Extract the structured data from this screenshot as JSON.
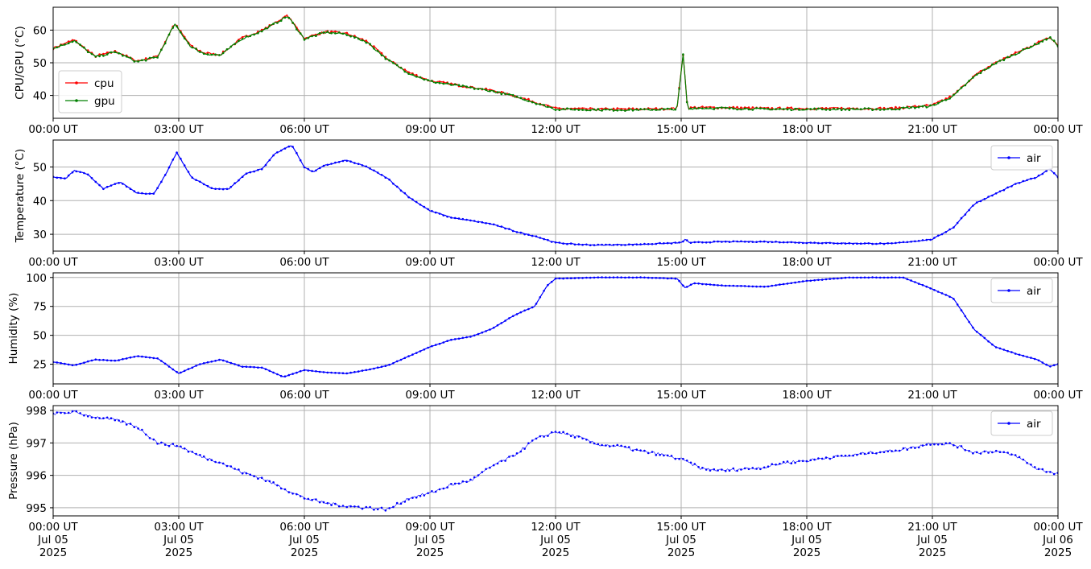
{
  "colors": {
    "cpu": "#ff0000",
    "gpu": "#008000",
    "air": "#0000ff",
    "grid": "#b0b0b0"
  },
  "x_axis": {
    "tick_labels": [
      "00:00 UT",
      "03:00 UT",
      "06:00 UT",
      "09:00 UT",
      "12:00 UT",
      "15:00 UT",
      "18:00 UT",
      "21:00 UT",
      "00:00 UT"
    ],
    "bottom_dates": [
      "Jul 05",
      "Jul 05",
      "Jul 05",
      "Jul 05",
      "Jul 05",
      "Jul 05",
      "Jul 05",
      "Jul 05",
      "Jul 06"
    ],
    "bottom_years": [
      "2025",
      "2025",
      "2025",
      "2025",
      "2025",
      "2025",
      "2025",
      "2025",
      "2025"
    ]
  },
  "chart_data": [
    {
      "type": "line",
      "ylabel": "CPU/GPU (°C)",
      "ylim": [
        33,
        67
      ],
      "yticks": [
        40,
        50,
        60
      ],
      "xlim": [
        "2025-07-05 00:00",
        "2025-07-06 00:00"
      ],
      "grid": true,
      "legend": "lower-left",
      "series": [
        {
          "name": "cpu",
          "color": "#ff0000",
          "x": [
            0,
            0.5,
            1,
            1.5,
            2,
            2.5,
            2.9,
            3.3,
            3.6,
            4,
            4.5,
            5,
            5.6,
            6,
            6.5,
            7,
            7.5,
            8,
            8.5,
            9,
            9.5,
            10,
            10.5,
            11,
            11.5,
            12,
            13,
            14,
            14.9,
            15.05,
            15.15,
            15.3,
            16,
            17,
            18,
            19,
            20,
            21,
            21.5,
            22,
            22.5,
            23,
            23.5,
            23.8,
            24
          ],
          "values": [
            54.5,
            57,
            52,
            53.5,
            50.5,
            52,
            62,
            55,
            53,
            52.5,
            57.5,
            60,
            64.5,
            57.5,
            59.5,
            59,
            56.5,
            51,
            47,
            44.5,
            43.5,
            42.5,
            41.5,
            40,
            38,
            36,
            35.8,
            35.8,
            36,
            53,
            36,
            36.3,
            36.3,
            36,
            36,
            36,
            36,
            37,
            40,
            46,
            50,
            53,
            56,
            58,
            55.5
          ]
        },
        {
          "name": "gpu",
          "color": "#008000",
          "x": [
            0,
            0.5,
            1,
            1.5,
            2,
            2.5,
            2.9,
            3.3,
            3.6,
            4,
            4.5,
            5,
            5.6,
            6,
            6.5,
            7,
            7.5,
            8,
            8.5,
            9,
            9.5,
            10,
            10.5,
            11,
            11.5,
            12,
            13,
            14,
            14.9,
            15.05,
            15.15,
            15.3,
            16,
            17,
            18,
            19,
            20,
            21,
            21.5,
            22,
            22.5,
            23,
            23.5,
            23.8,
            24
          ],
          "values": [
            54.3,
            56.8,
            51.8,
            53.3,
            50.3,
            51.8,
            61.8,
            54.8,
            52.8,
            52.3,
            57.3,
            59.8,
            64.3,
            57.3,
            59.3,
            58.8,
            56.3,
            50.8,
            46.8,
            44.3,
            43.3,
            42.3,
            41.3,
            39.8,
            37.8,
            35.8,
            35.6,
            35.6,
            35.8,
            52.8,
            35.8,
            36.1,
            36.1,
            35.8,
            35.8,
            35.8,
            35.8,
            36.8,
            39.8,
            45.8,
            49.8,
            52.8,
            55.8,
            57.8,
            55.3
          ]
        }
      ]
    },
    {
      "type": "line",
      "ylabel": "Temperature (°C)",
      "ylim": [
        25,
        58
      ],
      "yticks": [
        30,
        40,
        50
      ],
      "xlim": [
        "2025-07-05 00:00",
        "2025-07-06 00:00"
      ],
      "grid": true,
      "legend": "top-right",
      "series": [
        {
          "name": "air",
          "color": "#0000ff",
          "x": [
            0,
            0.3,
            0.5,
            0.8,
            1.2,
            1.6,
            2,
            2.4,
            2.7,
            2.95,
            3.3,
            3.8,
            4.2,
            4.6,
            5,
            5.3,
            5.7,
            6,
            6.2,
            6.5,
            7,
            7.5,
            8,
            8.5,
            9,
            9.5,
            10,
            10.5,
            11,
            11.3,
            11.5,
            12,
            12.5,
            13,
            14,
            15,
            15.1,
            15.2,
            16,
            17,
            18,
            19,
            20,
            21,
            21.5,
            22,
            22.5,
            23,
            23.5,
            23.8,
            24
          ],
          "values": [
            47,
            46.5,
            49,
            48,
            43.5,
            45.5,
            42.3,
            42,
            48,
            54.3,
            47,
            43.5,
            43.5,
            48,
            49.5,
            54,
            56.5,
            50,
            48.5,
            50.5,
            52,
            50,
            46.5,
            41,
            37,
            35,
            34,
            33,
            31,
            30,
            29.5,
            27.5,
            27,
            26.8,
            27,
            27.5,
            28.5,
            27.5,
            27.8,
            27.8,
            27.5,
            27.3,
            27.2,
            28.5,
            32,
            39,
            42,
            45,
            47,
            49.5,
            47
          ]
        }
      ]
    },
    {
      "type": "line",
      "ylabel": "Humidity (%)",
      "ylim": [
        8,
        104
      ],
      "yticks": [
        25,
        50,
        75,
        100
      ],
      "xlim": [
        "2025-07-05 00:00",
        "2025-07-06 00:00"
      ],
      "grid": true,
      "legend": "top-right",
      "series": [
        {
          "name": "air",
          "color": "#0000ff",
          "x": [
            0,
            0.5,
            1,
            1.5,
            2,
            2.5,
            3,
            3.5,
            4,
            4.5,
            5,
            5.5,
            6,
            6.5,
            7,
            7.5,
            8,
            8.5,
            9,
            9.5,
            10,
            10.5,
            11,
            11.3,
            11.5,
            11.8,
            12,
            13,
            14,
            14.9,
            15.1,
            15.3,
            16,
            17,
            18,
            19,
            20,
            20.3,
            21,
            21.5,
            22,
            22.5,
            23,
            23.5,
            23.8,
            24
          ],
          "values": [
            27,
            24,
            29,
            28,
            32,
            30,
            17,
            25,
            29,
            23,
            22,
            14,
            20,
            18,
            17,
            20,
            24,
            32,
            40,
            46,
            49,
            56,
            67,
            72,
            75,
            93,
            99,
            100,
            100,
            99,
            91,
            95,
            93,
            92,
            97,
            100,
            100,
            100,
            90,
            82,
            55,
            40,
            34,
            29,
            23,
            25
          ]
        }
      ]
    },
    {
      "type": "scatter",
      "ylabel": "Pressure (hPa)",
      "ylim": [
        994.75,
        998.15
      ],
      "yticks": [
        995,
        996,
        997,
        998
      ],
      "xlim": [
        "2025-07-05 00:00",
        "2025-07-06 00:00"
      ],
      "grid": true,
      "legend": "top-right",
      "series": [
        {
          "name": "air",
          "color": "#0000ff",
          "x": [
            0,
            0.5,
            1,
            1.5,
            2,
            2.5,
            3,
            3.5,
            4,
            4.5,
            5,
            5.5,
            6,
            6.5,
            7,
            7.5,
            8,
            8.5,
            9,
            9.5,
            10,
            10.5,
            11,
            11.5,
            12,
            12.5,
            13,
            13.5,
            14,
            14.5,
            15,
            15.5,
            16,
            16.5,
            17,
            17.5,
            18,
            18.5,
            19,
            19.5,
            20,
            20.5,
            21,
            21.5,
            22,
            22.5,
            23,
            23.5,
            24
          ],
          "values": [
            997.9,
            997.95,
            997.8,
            997.7,
            997.5,
            997.0,
            996.9,
            996.6,
            996.4,
            996.1,
            995.9,
            995.6,
            995.3,
            995.15,
            995.05,
            995.0,
            994.95,
            995.3,
            995.45,
            995.7,
            995.85,
            996.3,
            996.6,
            997.1,
            997.35,
            997.2,
            996.95,
            996.9,
            996.75,
            996.65,
            996.5,
            996.2,
            996.15,
            996.2,
            996.25,
            996.4,
            996.45,
            996.55,
            996.6,
            996.7,
            996.75,
            996.85,
            997.0,
            996.95,
            996.7,
            996.75,
            996.6,
            996.2,
            996.05
          ]
        }
      ]
    }
  ]
}
